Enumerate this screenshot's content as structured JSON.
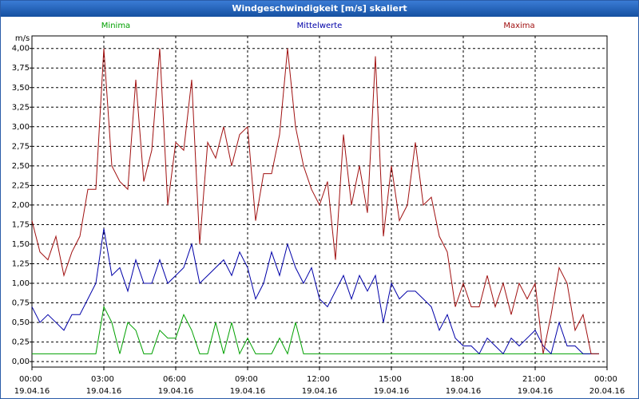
{
  "chart_data": {
    "type": "line",
    "title": "Windgeschwindigkeit [m/s] skaliert",
    "y_label": "m/s",
    "xlim": [
      0,
      1440
    ],
    "xticks": [
      {
        "value": 0,
        "label": "00:00 19.04.16"
      },
      {
        "value": 180,
        "label": "03:00 19.04.16"
      },
      {
        "value": 360,
        "label": "06:00 19.04.16"
      },
      {
        "value": 540,
        "label": "09:00 19.04.16"
      },
      {
        "value": 720,
        "label": "12:00 19.04.16"
      },
      {
        "value": 900,
        "label": "15:00 19.04.16"
      },
      {
        "value": 1080,
        "label": "18:00 19.04.16"
      },
      {
        "value": 1260,
        "label": "21:00 19.04.16"
      },
      {
        "value": 1440,
        "label": "00:00 20.04.16"
      }
    ],
    "ylim": [
      -0.07,
      4.16
    ],
    "yticks": [
      {
        "value": 0,
        "label": "0,00"
      },
      {
        "value": 0.25,
        "label": "0,25"
      },
      {
        "value": 0.5,
        "label": "0,50"
      },
      {
        "value": 0.75,
        "label": "0,75"
      },
      {
        "value": 1,
        "label": "1,00"
      },
      {
        "value": 1.25,
        "label": "1,25"
      },
      {
        "value": 1.5,
        "label": "1,50"
      },
      {
        "value": 1.75,
        "label": "1,75"
      },
      {
        "value": 2,
        "label": "2,00"
      },
      {
        "value": 2.25,
        "label": "2,25"
      },
      {
        "value": 2.5,
        "label": "2,50"
      },
      {
        "value": 2.75,
        "label": "2,75"
      },
      {
        "value": 3,
        "label": "3,00"
      },
      {
        "value": 3.25,
        "label": "3,25"
      },
      {
        "value": 3.5,
        "label": "3,50"
      },
      {
        "value": 3.75,
        "label": "3,75"
      },
      {
        "value": 4,
        "label": "4,00"
      }
    ],
    "grid": true,
    "x": [
      0,
      20,
      40,
      60,
      80,
      100,
      120,
      140,
      160,
      180,
      200,
      220,
      240,
      260,
      280,
      300,
      320,
      340,
      360,
      380,
      400,
      420,
      440,
      460,
      480,
      500,
      520,
      540,
      560,
      580,
      600,
      620,
      640,
      660,
      680,
      700,
      720,
      740,
      760,
      780,
      800,
      820,
      840,
      860,
      880,
      900,
      920,
      940,
      960,
      980,
      1000,
      1020,
      1040,
      1060,
      1080,
      1100,
      1120,
      1140,
      1160,
      1180,
      1200,
      1220,
      1240,
      1260,
      1280,
      1300,
      1320,
      1340,
      1360,
      1380,
      1400,
      1420
    ],
    "series": [
      {
        "name": "Minima",
        "color": "#00a000",
        "values": [
          0.1,
          0.1,
          0.1,
          0.1,
          0.1,
          0.1,
          0.1,
          0.1,
          0.1,
          0.7,
          0.5,
          0.1,
          0.5,
          0.4,
          0.1,
          0.1,
          0.4,
          0.3,
          0.3,
          0.6,
          0.4,
          0.1,
          0.1,
          0.5,
          0.1,
          0.5,
          0.1,
          0.3,
          0.1,
          0.1,
          0.1,
          0.3,
          0.1,
          0.5,
          0.1,
          0.1,
          0.1,
          0.1,
          0.1,
          0.1,
          0.1,
          0.1,
          0.1,
          0.1,
          0.1,
          0.1,
          0.1,
          0.1,
          0.1,
          0.1,
          0.1,
          0.1,
          0.1,
          0.1,
          0.1,
          0.1,
          0.1,
          0.1,
          0.1,
          0.1,
          0.1,
          0.1,
          0.1,
          0.1,
          0.1,
          0.1,
          0.1,
          0.1,
          0.1,
          0.1,
          0.1,
          0.1
        ]
      },
      {
        "name": "Mittelwerte",
        "color": "#0000a8",
        "values": [
          0.7,
          0.5,
          0.6,
          0.5,
          0.4,
          0.6,
          0.6,
          0.8,
          1.0,
          1.7,
          1.1,
          1.2,
          0.9,
          1.3,
          1.0,
          1.0,
          1.3,
          1.0,
          1.1,
          1.2,
          1.5,
          1.0,
          1.1,
          1.2,
          1.3,
          1.1,
          1.4,
          1.2,
          0.8,
          1.0,
          1.4,
          1.1,
          1.5,
          1.2,
          1.0,
          1.2,
          0.8,
          0.7,
          0.9,
          1.1,
          0.8,
          1.1,
          0.9,
          1.1,
          0.5,
          1.0,
          0.8,
          0.9,
          0.9,
          0.8,
          0.7,
          0.4,
          0.6,
          0.3,
          0.2,
          0.2,
          0.1,
          0.3,
          0.2,
          0.1,
          0.3,
          0.2,
          0.3,
          0.4,
          0.2,
          0.1,
          0.5,
          0.2,
          0.2,
          0.1,
          0.1,
          0.1
        ]
      },
      {
        "name": "Maxima",
        "color": "#a01010",
        "values": [
          1.8,
          1.4,
          1.3,
          1.6,
          1.1,
          1.4,
          1.6,
          2.2,
          2.2,
          4.0,
          2.5,
          2.3,
          2.2,
          3.6,
          2.3,
          2.7,
          4.0,
          2.0,
          2.8,
          2.7,
          3.6,
          1.5,
          2.8,
          2.6,
          3.0,
          2.5,
          2.9,
          3.0,
          1.8,
          2.4,
          2.4,
          2.9,
          4.0,
          3.0,
          2.5,
          2.2,
          2.0,
          2.3,
          1.3,
          2.9,
          2.0,
          2.5,
          1.9,
          3.9,
          1.6,
          2.5,
          1.8,
          2.0,
          2.8,
          2.0,
          2.1,
          1.6,
          1.4,
          0.7,
          1.0,
          0.7,
          0.7,
          1.1,
          0.7,
          1.0,
          0.6,
          1.0,
          0.8,
          1.0,
          0.1,
          0.6,
          1.2,
          1.0,
          0.4,
          0.6,
          0.1,
          0.1
        ]
      }
    ]
  }
}
